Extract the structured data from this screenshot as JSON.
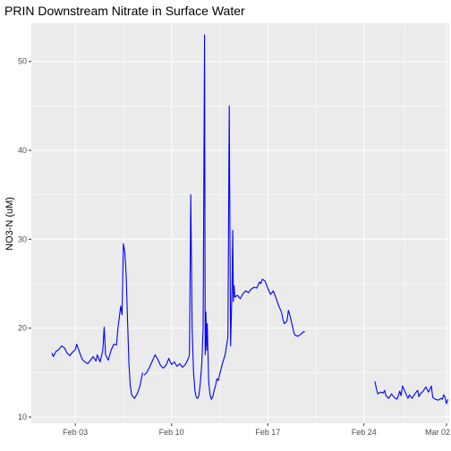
{
  "chart_data": {
    "type": "line",
    "title": "PRIN Downstream Nitrate in Surface Water",
    "xlabel": "",
    "ylabel": "NO3-N (uM)",
    "x_ticks": [
      "Feb 03",
      "Feb 10",
      "Feb 17",
      "Feb 24",
      "Mar 02"
    ],
    "x_tick_days": [
      3,
      10,
      17,
      24,
      30
    ],
    "xlim": [
      -0.2,
      30.2
    ],
    "y_ticks": [
      10,
      20,
      30,
      40,
      50
    ],
    "ylim": [
      9.3,
      54.3
    ],
    "grid": true,
    "legend": "none",
    "colors": {
      "line": "#0000ff",
      "panel": "#ebebeb",
      "grid": "#ffffff"
    },
    "series": [
      {
        "segments": [
          [
            [
              1.3,
              17.2
            ],
            [
              1.4,
              16.8
            ],
            [
              1.6,
              17.4
            ],
            [
              1.8,
              17.6
            ],
            [
              2.0,
              18.0
            ],
            [
              2.2,
              17.8
            ],
            [
              2.4,
              17.2
            ],
            [
              2.6,
              16.9
            ],
            [
              2.8,
              17.3
            ],
            [
              3.0,
              17.6
            ],
            [
              3.1,
              18.2
            ],
            [
              3.3,
              17.3
            ],
            [
              3.5,
              16.5
            ],
            [
              3.7,
              16.2
            ],
            [
              3.9,
              16.0
            ],
            [
              4.1,
              16.4
            ],
            [
              4.3,
              16.8
            ],
            [
              4.5,
              16.3
            ],
            [
              4.6,
              17.0
            ],
            [
              4.8,
              16.2
            ],
            [
              5.0,
              17.5
            ],
            [
              5.1,
              20.1
            ],
            [
              5.2,
              17.0
            ],
            [
              5.4,
              16.4
            ],
            [
              5.6,
              17.5
            ],
            [
              5.8,
              18.2
            ],
            [
              6.0,
              18.1
            ],
            [
              6.1,
              20.0
            ],
            [
              6.3,
              22.5
            ],
            [
              6.4,
              21.5
            ],
            [
              6.5,
              29.5
            ],
            [
              6.6,
              28.5
            ],
            [
              6.7,
              26.0
            ],
            [
              6.8,
              21.0
            ],
            [
              6.9,
              16.0
            ],
            [
              7.0,
              13.5
            ],
            [
              7.1,
              12.5
            ],
            [
              7.3,
              12.1
            ],
            [
              7.5,
              12.6
            ],
            [
              7.7,
              13.5
            ],
            [
              7.9,
              15.0
            ]
          ],
          [
            [
              8.0,
              14.7
            ],
            [
              8.2,
              15.0
            ],
            [
              8.4,
              15.6
            ],
            [
              8.6,
              16.3
            ],
            [
              8.8,
              17.0
            ],
            [
              9.0,
              16.5
            ],
            [
              9.2,
              15.8
            ],
            [
              9.4,
              15.5
            ],
            [
              9.6,
              15.8
            ],
            [
              9.8,
              16.6
            ],
            [
              10.0,
              15.9
            ],
            [
              10.2,
              16.2
            ],
            [
              10.4,
              15.7
            ],
            [
              10.6,
              16.0
            ],
            [
              10.8,
              15.6
            ],
            [
              11.0,
              15.9
            ],
            [
              11.2,
              16.5
            ],
            [
              11.3,
              17.0
            ],
            [
              11.4,
              35.0
            ],
            [
              11.5,
              20.0
            ],
            [
              11.6,
              15.0
            ],
            [
              11.7,
              13.0
            ],
            [
              11.8,
              12.2
            ],
            [
              11.9,
              12.1
            ],
            [
              12.0,
              12.5
            ],
            [
              12.1,
              14.0
            ],
            [
              12.2,
              16.0
            ],
            [
              12.3,
              20.0
            ],
            [
              12.4,
              53.0
            ],
            [
              12.45,
              17.0
            ],
            [
              12.5,
              21.8
            ],
            [
              12.55,
              17.5
            ],
            [
              12.6,
              20.5
            ],
            [
              12.7,
              14.0
            ],
            [
              12.8,
              12.5
            ],
            [
              12.9,
              12.0
            ],
            [
              13.0,
              12.3
            ],
            [
              13.1,
              13.0
            ],
            [
              13.2,
              13.5
            ],
            [
              13.3,
              14.3
            ],
            [
              13.4,
              14.1
            ],
            [
              13.5,
              14.8
            ],
            [
              13.7,
              16.0
            ],
            [
              13.9,
              17.0
            ],
            [
              14.1,
              19.0
            ],
            [
              14.2,
              45.0
            ],
            [
              14.3,
              18.0
            ],
            [
              14.4,
              24.5
            ],
            [
              14.45,
              31.0
            ],
            [
              14.5,
              23.0
            ],
            [
              14.55,
              24.8
            ],
            [
              14.6,
              23.5
            ],
            [
              14.8,
              23.7
            ],
            [
              15.0,
              23.3
            ],
            [
              15.2,
              23.9
            ],
            [
              15.4,
              24.2
            ],
            [
              15.6,
              24.0
            ],
            [
              15.8,
              24.4
            ],
            [
              16.0,
              24.6
            ],
            [
              16.2,
              24.5
            ],
            [
              16.4,
              25.2
            ],
            [
              16.5,
              25.0
            ],
            [
              16.6,
              25.5
            ],
            [
              16.8,
              25.3
            ],
            [
              17.0,
              24.5
            ],
            [
              17.2,
              23.8
            ],
            [
              17.4,
              24.2
            ],
            [
              17.6,
              23.4
            ],
            [
              17.8,
              22.5
            ],
            [
              18.0,
              21.8
            ],
            [
              18.1,
              21.0
            ],
            [
              18.2,
              20.5
            ],
            [
              18.4,
              20.8
            ],
            [
              18.5,
              22.0
            ],
            [
              18.6,
              21.5
            ],
            [
              18.8,
              20.2
            ],
            [
              18.9,
              19.5
            ],
            [
              19.0,
              19.2
            ],
            [
              19.2,
              19.1
            ],
            [
              19.4,
              19.3
            ],
            [
              19.6,
              19.6
            ],
            [
              19.7,
              19.6
            ]
          ],
          [
            [
              24.8,
              14.0
            ],
            [
              24.9,
              13.2
            ],
            [
              25.0,
              12.6
            ],
            [
              25.2,
              12.8
            ],
            [
              25.4,
              12.7
            ],
            [
              25.5,
              13.0
            ],
            [
              25.6,
              12.4
            ],
            [
              25.8,
              12.1
            ],
            [
              26.0,
              12.6
            ],
            [
              26.2,
              12.2
            ],
            [
              26.4,
              12.0
            ],
            [
              26.5,
              12.4
            ],
            [
              26.6,
              12.9
            ],
            [
              26.7,
              12.4
            ],
            [
              26.8,
              13.5
            ],
            [
              27.0,
              12.8
            ],
            [
              27.2,
              12.1
            ],
            [
              27.3,
              12.5
            ],
            [
              27.5,
              12.1
            ],
            [
              27.7,
              12.6
            ],
            [
              27.9,
              13.0
            ],
            [
              28.0,
              12.3
            ],
            [
              28.1,
              12.6
            ],
            [
              28.3,
              12.9
            ],
            [
              28.5,
              13.4
            ],
            [
              28.6,
              13.1
            ],
            [
              28.7,
              12.8
            ],
            [
              28.9,
              13.5
            ],
            [
              29.0,
              12.2
            ],
            [
              29.2,
              12.0
            ],
            [
              29.4,
              11.9
            ],
            [
              29.6,
              12.1
            ],
            [
              29.7,
              12.0
            ],
            [
              29.8,
              12.5
            ],
            [
              29.9,
              12.2
            ],
            [
              30.0,
              11.5
            ],
            [
              30.1,
              12.0
            ]
          ]
        ]
      }
    ]
  }
}
